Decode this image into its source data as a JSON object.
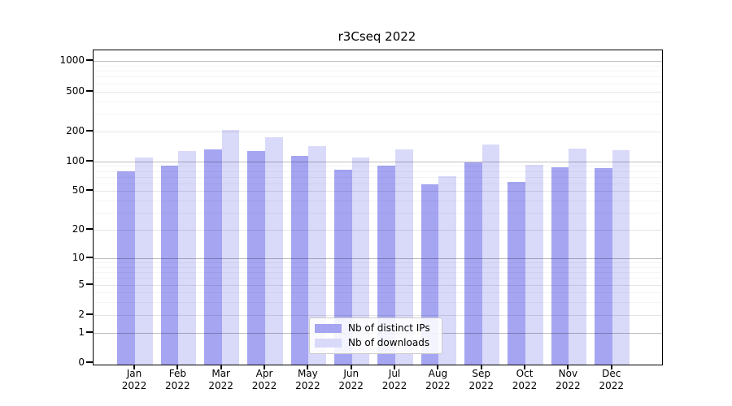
{
  "chart_data": {
    "type": "bar",
    "title": "r3Cseq 2022",
    "categories": [
      "Jan",
      "Feb",
      "Mar",
      "Apr",
      "May",
      "Jun",
      "Jul",
      "Aug",
      "Sep",
      "Oct",
      "Nov",
      "Dec"
    ],
    "tick_year": "2022",
    "series": [
      {
        "name": "Nb of distinct IPs",
        "color": "#a5a5f2",
        "values": [
          79,
          90,
          131,
          128,
          113,
          82,
          90,
          59,
          98,
          62,
          88,
          86
        ]
      },
      {
        "name": "Nb of downloads",
        "color": "#d9d9f9",
        "values": [
          109,
          126,
          205,
          174,
          143,
          110,
          131,
          71,
          148,
          93,
          135,
          129
        ]
      }
    ],
    "y_ticks": [
      0,
      1,
      2,
      5,
      10,
      20,
      50,
      100,
      200,
      500,
      1000
    ],
    "y_scale": "log1p",
    "ylim": [
      0,
      1258
    ],
    "grid": true,
    "legend_position": "lower center"
  }
}
